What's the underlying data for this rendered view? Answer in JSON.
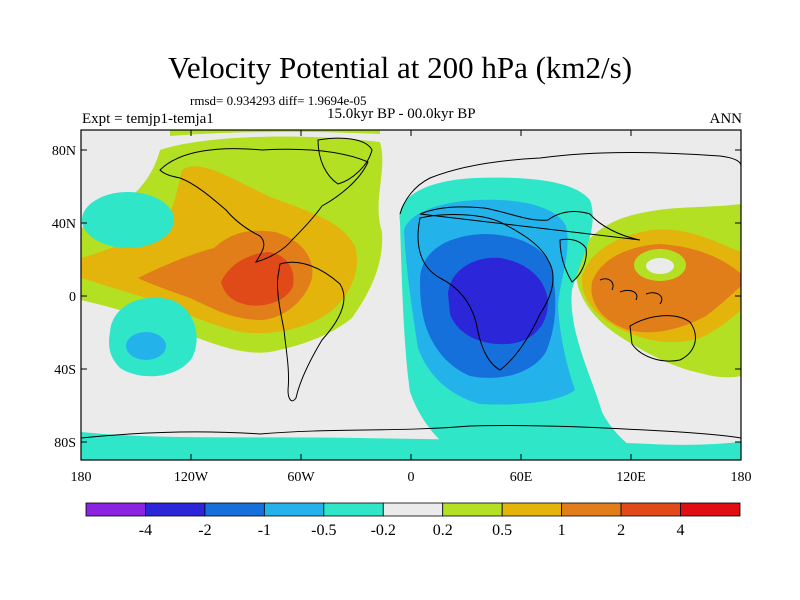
{
  "title": "Velocity Potential at 200 hPa (km2/s)",
  "stats": "rmsd= 0.934293  diff= 1.9694e-05",
  "period": "15.0kyr BP - 00.0kyr BP",
  "experiment": "Expt = temjp1-temja1",
  "season": "ANN",
  "map": {
    "lon_ticks": [
      "180",
      "120W",
      "60W",
      "0",
      "60E",
      "120E",
      "180"
    ],
    "lat_ticks": [
      "80N",
      "40N",
      "0",
      "40S",
      "80S"
    ],
    "background_color": "#ebebeb"
  },
  "colorbar": {
    "colors": [
      "#8a24e0",
      "#2b26d8",
      "#1670dc",
      "#23b3ea",
      "#2fe6c8",
      "#ebebeb",
      "#b4e024",
      "#e2b40c",
      "#e27e1a",
      "#e04a18",
      "#e00e12"
    ],
    "labels": [
      "-4",
      "-2",
      "-1",
      "-0.5",
      "-0.2",
      "0.2",
      "0.5",
      "1",
      "2",
      "4"
    ]
  }
}
